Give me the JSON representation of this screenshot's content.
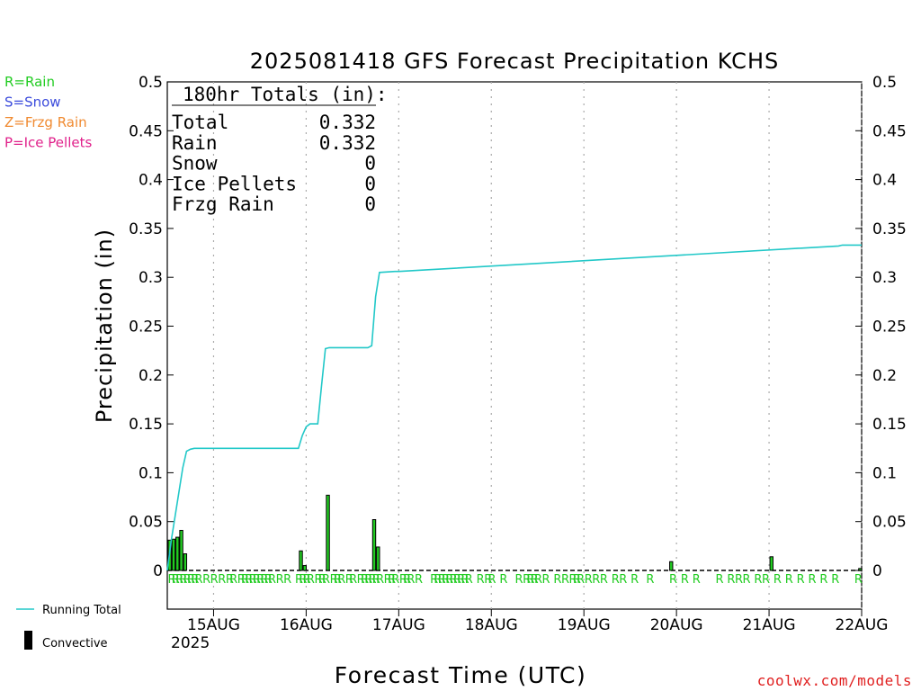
{
  "chart_data": {
    "type": "bar",
    "title": "2025081418 GFS Forecast Precipitation KCHS",
    "xlabel": "Forecast Time (UTC)",
    "ylabel": "Precipitation (in)",
    "ylim": [
      0,
      0.5
    ],
    "xlim_hours": [
      -6,
      174
    ],
    "yticks": [
      "0",
      "0.05",
      "0.1",
      "0.15",
      "0.2",
      "0.25",
      "0.3",
      "0.35",
      "0.4",
      "0.45",
      "0.5"
    ],
    "grid": "vertical dotted at each day",
    "date_ticks": [
      {
        "hour": 6,
        "label": "15AUG"
      },
      {
        "hour": 30,
        "label": "16AUG"
      },
      {
        "hour": 54,
        "label": "17AUG"
      },
      {
        "hour": 78,
        "label": "18AUG"
      },
      {
        "hour": 102,
        "label": "19AUG"
      },
      {
        "hour": 126,
        "label": "20AUG"
      },
      {
        "hour": 150,
        "label": "21AUG"
      },
      {
        "hour": 174,
        "label": "22AUG"
      }
    ],
    "year_label": "2025",
    "legend_types": [
      {
        "text": "R=Rain",
        "color": "#22cc22"
      },
      {
        "text": "S=Snow",
        "color": "#3b4bdc"
      },
      {
        "text": "Z=Frzg Rain",
        "color": "#f08a30"
      },
      {
        "text": "P=Ice Pellets",
        "color": "#e0208a"
      }
    ],
    "legend_lines": [
      {
        "text": "Running Total",
        "color": "#22c8c8"
      },
      {
        "text": "Convective",
        "color": "#000000"
      }
    ],
    "totals_box": {
      "heading": "180hr Totals (in):",
      "rows": [
        {
          "label": "Total",
          "value": "0.332"
        },
        {
          "label": "Rain",
          "value": "0.332"
        },
        {
          "label": "Snow",
          "value": "0"
        },
        {
          "label": "Ice Pellets",
          "value": "0"
        },
        {
          "label": "Frzg Rain",
          "value": "0"
        }
      ]
    },
    "running_total": {
      "color": "#22c8c8",
      "x": [
        -6,
        -5,
        -4,
        -3,
        -2,
        -1,
        0,
        1,
        28,
        29,
        30,
        31,
        33,
        34,
        35,
        36,
        46,
        47,
        48,
        49,
        53,
        54,
        168,
        169,
        174
      ],
      "y": [
        0,
        0.03,
        0.055,
        0.08,
        0.105,
        0.122,
        0.124,
        0.125,
        0.125,
        0.138,
        0.147,
        0.15,
        0.15,
        0.19,
        0.227,
        0.228,
        0.228,
        0.23,
        0.28,
        0.305,
        0.306,
        0.306,
        0.332,
        0.333,
        0.333
      ]
    },
    "bars": {
      "color": "#000000",
      "fill": "#22cc22",
      "x": [
        -6,
        -5,
        -4,
        -3,
        -2,
        28,
        29,
        35,
        47,
        48,
        124,
        150,
        173
      ],
      "y": [
        0.031,
        0.032,
        0.034,
        0.041,
        0.017,
        0.02,
        0.005,
        0.077,
        0.052,
        0.024,
        0.009,
        0.014,
        0.002
      ]
    },
    "rain_markers": {
      "label": "R",
      "color": "#22cc22",
      "hours": [
        -6,
        -5,
        -4,
        -3,
        -2,
        -1,
        0,
        1,
        3,
        5,
        7,
        9,
        10,
        12,
        13,
        14,
        15,
        16,
        17,
        18,
        19,
        20,
        22,
        24,
        27,
        28,
        29,
        30,
        32,
        33,
        34,
        36,
        37,
        38,
        40,
        41,
        43,
        44,
        45,
        46,
        47,
        48,
        50,
        51,
        52,
        54,
        55,
        56,
        58,
        62,
        63,
        64,
        65,
        66,
        67,
        68,
        69,
        70,
        71,
        74,
        76,
        77,
        80,
        84,
        86,
        87,
        88,
        89,
        91,
        94,
        96,
        98,
        99,
        100,
        102,
        104,
        106,
        109,
        111,
        114,
        118,
        124,
        127,
        130,
        136,
        139,
        141,
        143,
        146,
        148,
        151,
        154,
        157,
        160,
        163,
        166,
        172
      ]
    },
    "watermark": "coolwx.com/models"
  }
}
